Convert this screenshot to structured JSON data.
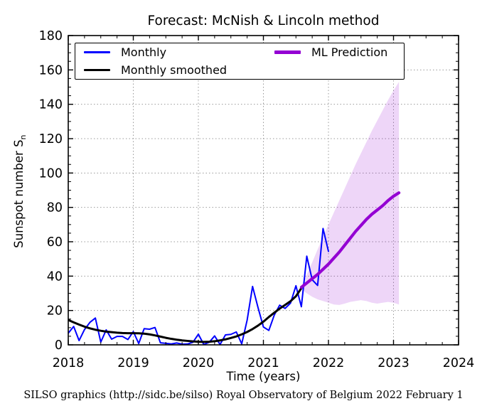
{
  "figure": {
    "footer": "SILSO graphics (http://sidc.be/silso)  Royal Observatory of Belgium  2022 February 1"
  },
  "chart_data": {
    "type": "line",
    "title": "Forecast: McNish & Lincoln method",
    "xlabel": "Time (years)",
    "ylabel": "Sunspot number S",
    "ylabel_sub": "n",
    "xlim": [
      2018,
      2024
    ],
    "ylim": [
      0,
      180
    ],
    "x_ticks": [
      2018,
      2019,
      2020,
      2021,
      2022,
      2023,
      2024
    ],
    "y_ticks": [
      0,
      20,
      40,
      60,
      80,
      100,
      120,
      140,
      160,
      180
    ],
    "x_minor_step": 0.25,
    "y_minor_step": 5,
    "grid": "dotted",
    "grid_color": "#999999",
    "legend_position": "upper-left",
    "series": [
      {
        "name": "Monthly",
        "color": "#0000ff",
        "width": 2,
        "x_start": 2018.0,
        "x_step": 0.0833333,
        "values": [
          6.8,
          10.7,
          2.5,
          8.9,
          13.1,
          15.6,
          1.6,
          8.7,
          3.3,
          4.9,
          4.9,
          3.1,
          7.7,
          0.8,
          9.4,
          9.1,
          10.1,
          1.2,
          0.9,
          0.5,
          1.1,
          0.4,
          0.5,
          1.5,
          6.2,
          0.2,
          1.5,
          5.2,
          0.2,
          5.8,
          6.1,
          7.5,
          0.6,
          14.4,
          34.0,
          21.8,
          10.4,
          8.4,
          17.3,
          23.1,
          21.2,
          24.3,
          34.4,
          22.2,
          51.6,
          37.9,
          34.6,
          67.7,
          54.4
        ]
      },
      {
        "name": "Monthly smoothed",
        "color": "#000000",
        "width": 3,
        "x_start": 2018.0,
        "x_step": 0.0833333,
        "values": [
          14.5,
          13.1,
          11.8,
          10.6,
          9.6,
          8.8,
          8.2,
          7.7,
          7.4,
          7.1,
          6.9,
          6.8,
          6.8,
          6.7,
          6.5,
          6.1,
          5.5,
          4.8,
          4.1,
          3.5,
          3.0,
          2.6,
          2.3,
          2.0,
          1.8,
          1.7,
          1.8,
          2.1,
          2.6,
          3.2,
          4.0,
          4.9,
          6.1,
          7.5,
          9.2,
          11.2,
          13.5,
          16.2,
          18.7,
          21.1,
          23.2,
          25.4,
          28.3,
          33.0
        ]
      },
      {
        "name": "ML Prediction",
        "color": "#9400d3",
        "width": 4.2,
        "x_start": 2021.5833,
        "x_step": 0.0833333,
        "values": [
          33.5,
          36.0,
          38.5,
          41.0,
          44.0,
          47.0,
          50.5,
          54.0,
          58.0,
          62.0,
          66.0,
          69.5,
          73.0,
          76.0,
          78.5,
          81.0,
          84.0,
          86.5,
          88.5
        ]
      }
    ],
    "uncertainty_band": {
      "name": "ML Prediction uncertainty",
      "color": "rgba(148,0,211,0.16)",
      "x_start": 2021.5833,
      "x_step": 0.0833333,
      "upper": [
        34,
        41,
        48,
        55.5,
        63,
        70,
        77,
        84,
        91,
        98,
        105,
        111.5,
        118,
        124.5,
        130.5,
        136.5,
        142.5,
        148,
        153
      ],
      "lower": [
        32.5,
        30,
        28,
        26.5,
        25.5,
        24.5,
        23.5,
        23.2,
        24,
        25,
        25.5,
        26,
        25.5,
        24.5,
        24,
        24.5,
        25,
        24.5,
        23.5
      ]
    }
  }
}
